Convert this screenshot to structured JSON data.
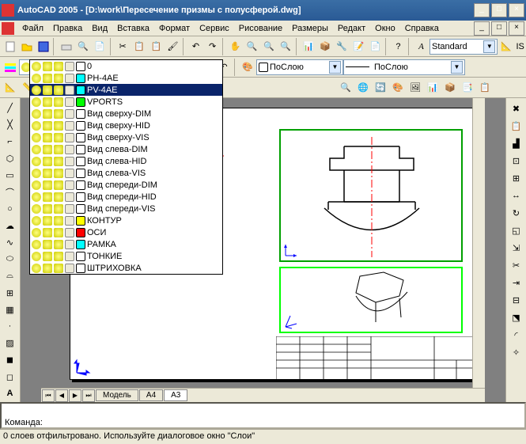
{
  "title": "AutoCAD 2005 - [D:\\work\\Пересечение призмы с полусферой.dwg]",
  "menu": [
    "Файл",
    "Правка",
    "Вид",
    "Вставка",
    "Формат",
    "Сервис",
    "Рисование",
    "Размеры",
    "Редакт",
    "Окно",
    "Справка"
  ],
  "style_combo": "Standard",
  "iso_label": "IS",
  "layer_combo": "PV-4AE",
  "bylayer1": "ПоСлою",
  "bylayer2": "ПоСлою",
  "layers": [
    {
      "name": "0",
      "color": "#ffffff"
    },
    {
      "name": "PH-4AE",
      "color": "#00ffff"
    },
    {
      "name": "PV-4AE",
      "color": "#00ffff",
      "selected": true
    },
    {
      "name": "VPORTS",
      "color": "#00ff00"
    },
    {
      "name": "Вид сверху-DIM",
      "color": "#ffffff"
    },
    {
      "name": "Вид сверху-HID",
      "color": "#ffffff"
    },
    {
      "name": "Вид сверху-VIS",
      "color": "#ffffff"
    },
    {
      "name": "Вид слева-DIM",
      "color": "#ffffff"
    },
    {
      "name": "Вид слева-HID",
      "color": "#ffffff"
    },
    {
      "name": "Вид слева-VIS",
      "color": "#ffffff"
    },
    {
      "name": "Вид спереди-DIM",
      "color": "#ffffff"
    },
    {
      "name": "Вид спереди-HID",
      "color": "#ffffff"
    },
    {
      "name": "Вид спереди-VIS",
      "color": "#ffffff"
    },
    {
      "name": "КОНТУР",
      "color": "#ffff00"
    },
    {
      "name": "ОСИ",
      "color": "#ff0000"
    },
    {
      "name": "РАМКА",
      "color": "#00ffff"
    },
    {
      "name": "ТОНКИЕ",
      "color": "#ffffff"
    },
    {
      "name": "ШТРИХОВКА",
      "color": "#ffffff"
    }
  ],
  "tabs": {
    "model": "Модель",
    "a4": "A4",
    "a3": "A3"
  },
  "command_label": "Команда:",
  "status_text": "0 слоев отфильтровано.  Используйте диалоговое окно \"Слои\"",
  "colors": {
    "titlebar": "#3a6ea5",
    "bg": "#ece9d8",
    "viewport_green": "#00a000",
    "viewport_bright": "#00ff00",
    "centerline": "#ff0000"
  }
}
